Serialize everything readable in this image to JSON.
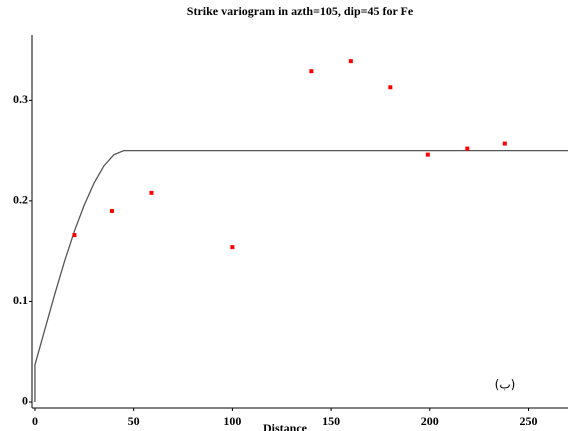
{
  "chart_data": {
    "type": "scatter",
    "title": "Strike variogram in azth=105, dip=45 for Fe",
    "x_label": "Distance",
    "annotation": "(ب)",
    "xlim": [
      -1.5,
      270
    ],
    "ylim": [
      -0.006,
      0.365
    ],
    "xticks": [
      0,
      50,
      100,
      150,
      200,
      250
    ],
    "yticks": [
      0,
      0.1,
      0.2,
      0.3
    ],
    "points": {
      "color": "#ff0000",
      "x": [
        20,
        39,
        59,
        100,
        140,
        160,
        180,
        199,
        219,
        238
      ],
      "values": [
        0.166,
        0.19,
        0.208,
        0.154,
        0.329,
        0.339,
        0.313,
        0.246,
        0.252,
        0.257
      ]
    },
    "model": {
      "color": "#555555",
      "x": [
        0,
        0,
        5,
        10,
        15,
        20,
        25,
        30,
        35,
        40,
        45,
        270
      ],
      "values": [
        0,
        0.037,
        0.072,
        0.107,
        0.14,
        0.17,
        0.196,
        0.218,
        0.235,
        0.246,
        0.25,
        0.25
      ]
    }
  }
}
